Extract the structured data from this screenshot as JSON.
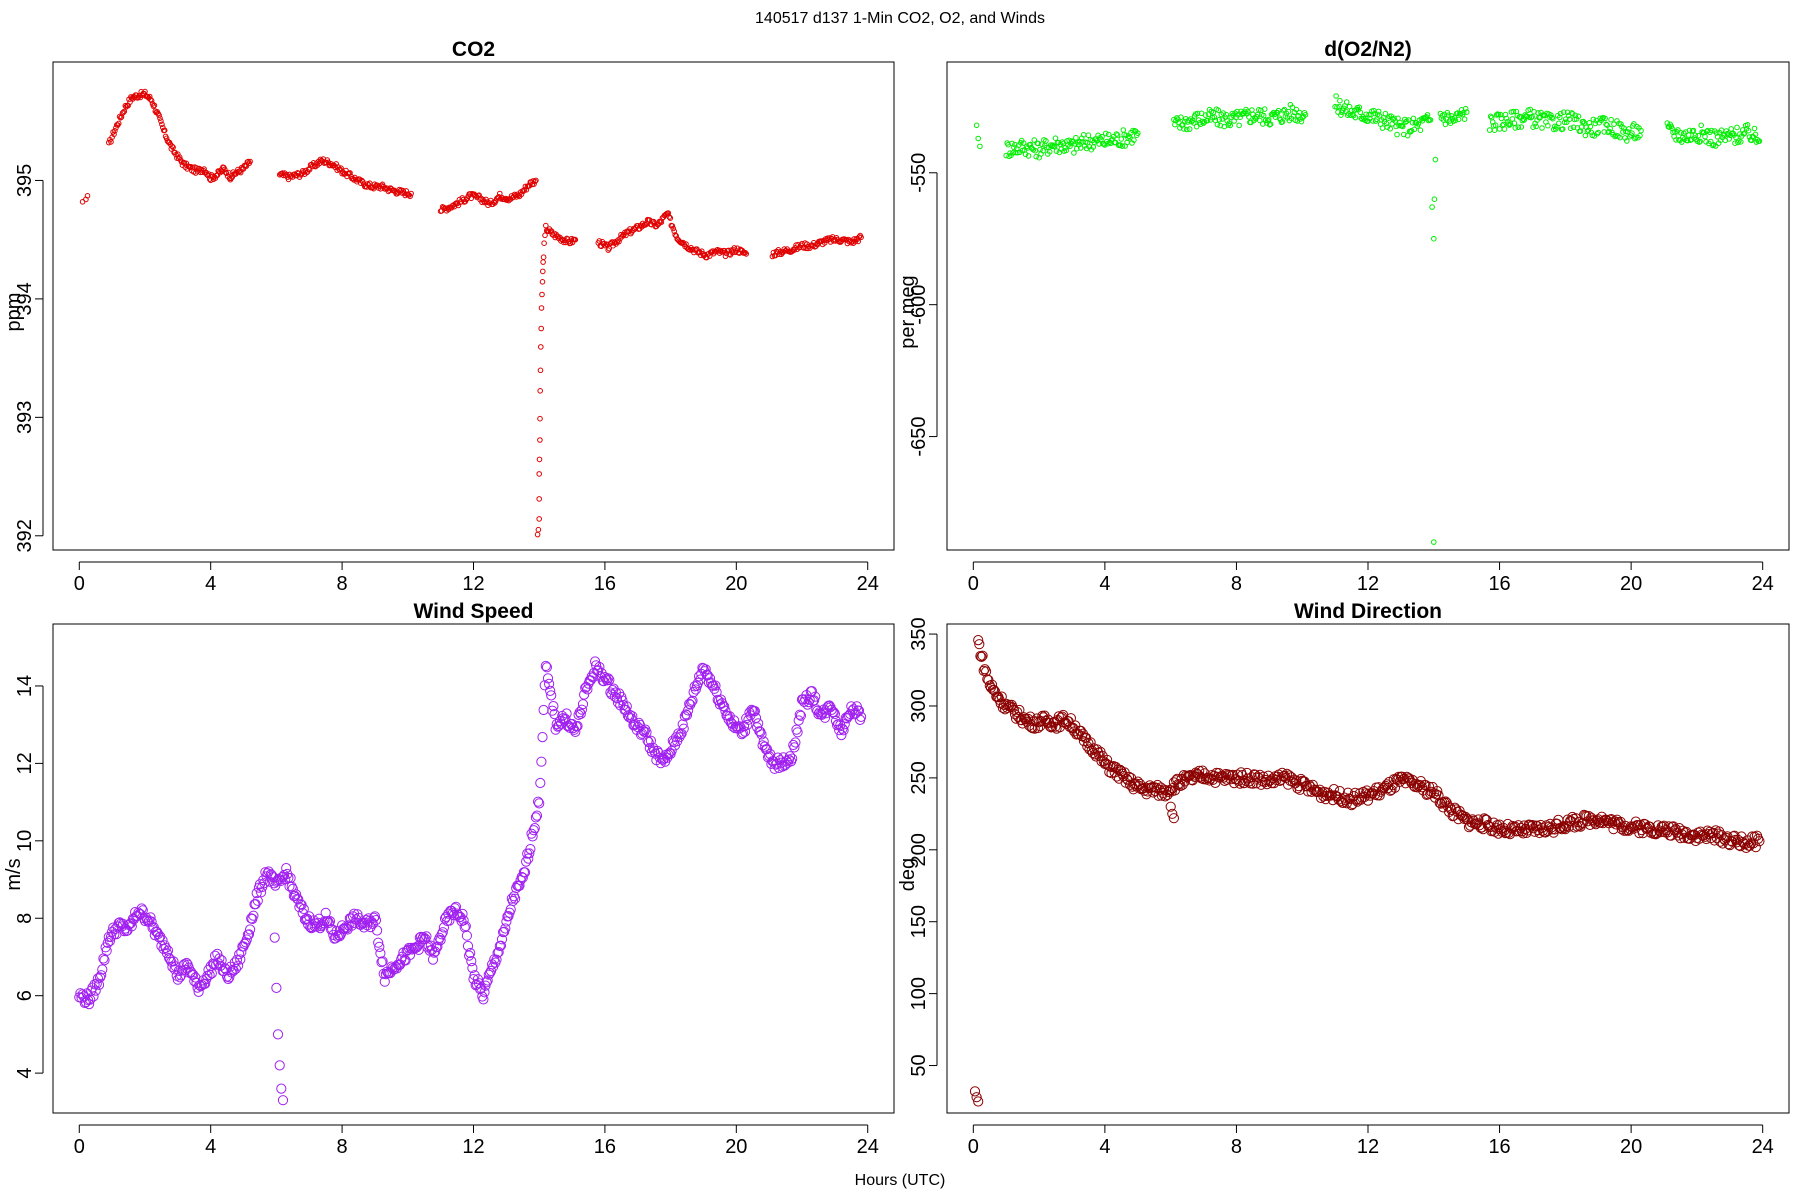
{
  "figure": {
    "suptitle": "140517   d137   1-Min CO2, O2, and Winds",
    "xlabel": "Hours (UTC)"
  },
  "chart_data": [
    {
      "type": "scatter",
      "title": "CO2",
      "ylabel": "ppm",
      "color": "#e00000",
      "marker_radius_style": "small",
      "xlim": [
        -0.8,
        24.8
      ],
      "ylim": [
        391.88,
        396.0
      ],
      "xticks": [
        0,
        4,
        8,
        12,
        16,
        20,
        24
      ],
      "yticks": [
        392,
        393,
        394,
        395
      ],
      "segments": [
        {
          "x": [
            0.1,
            0.2,
            0.25
          ],
          "y": [
            394.82,
            394.84,
            394.87
          ]
        },
        {
          "x": [
            0.9,
            1.0,
            1.2,
            1.4,
            1.6,
            1.8,
            2.0,
            2.2,
            2.4,
            2.6,
            2.8,
            3.0,
            3.2,
            3.4,
            3.6,
            3.8,
            4.0,
            4.2,
            4.4,
            4.6,
            4.8,
            5.0,
            5.2
          ],
          "y": [
            395.3,
            395.37,
            395.5,
            395.62,
            395.7,
            395.72,
            395.73,
            395.68,
            395.55,
            395.4,
            395.28,
            395.2,
            395.13,
            395.1,
            395.08,
            395.1,
            395.02,
            395.05,
            395.1,
            395.03,
            395.07,
            395.1,
            395.16
          ]
        },
        {
          "x": [
            6.1,
            6.4,
            6.8,
            7.1,
            7.4,
            7.7,
            8.0,
            8.3,
            8.6,
            8.9,
            9.2,
            9.5,
            9.8,
            10.1
          ],
          "y": [
            395.05,
            395.03,
            395.06,
            395.12,
            395.17,
            395.14,
            395.08,
            395.03,
            394.98,
            394.95,
            394.95,
            394.92,
            394.9,
            394.89
          ]
        },
        {
          "x": [
            11.0,
            11.3,
            11.6,
            11.9,
            12.2,
            12.5,
            12.8,
            13.1,
            13.4,
            13.7,
            13.9
          ],
          "y": [
            394.75,
            394.78,
            394.82,
            394.87,
            394.85,
            394.8,
            394.87,
            394.85,
            394.88,
            394.97,
            395.0
          ]
        },
        {
          "x": [
            13.95,
            14.0,
            14.0,
            14.02,
            14.03,
            14.05,
            14.07,
            14.1,
            14.12,
            14.15,
            14.2,
            14.4,
            14.6,
            14.9,
            15.1
          ],
          "y": [
            392.0,
            392.15,
            392.5,
            392.8,
            393.2,
            393.6,
            393.9,
            394.15,
            394.3,
            394.45,
            394.6,
            394.55,
            394.52,
            394.48,
            394.5
          ]
        },
        {
          "x": [
            15.8,
            16.1,
            16.4,
            16.7,
            17.0,
            17.3,
            17.6,
            17.9,
            18.2,
            18.5,
            18.8,
            19.1,
            19.4,
            19.7,
            20.0,
            20.3
          ],
          "y": [
            394.48,
            394.43,
            394.5,
            394.56,
            394.6,
            394.65,
            394.62,
            394.72,
            394.52,
            394.45,
            394.4,
            394.37,
            394.4,
            394.38,
            394.42,
            394.38
          ]
        },
        {
          "x": [
            21.1,
            21.4,
            21.7,
            22.0,
            22.3,
            22.6,
            22.9,
            23.2,
            23.5,
            23.8
          ],
          "y": [
            394.38,
            394.4,
            394.42,
            394.45,
            394.45,
            394.48,
            394.5,
            394.5,
            394.48,
            394.52
          ]
        }
      ]
    },
    {
      "type": "scatter",
      "title": "d(O2/N2)",
      "ylabel": "per meg",
      "color": "#00ee00",
      "marker_radius_style": "small",
      "xlim": [
        -0.8,
        24.8
      ],
      "ylim": [
        -693,
        -508
      ],
      "xticks": [
        0,
        4,
        8,
        12,
        16,
        20,
        24
      ],
      "yticks": [
        -650,
        -600,
        -550
      ],
      "segments": [
        {
          "x": [
            0.1,
            0.15,
            0.2
          ],
          "y": [
            -532,
            -537,
            -540
          ]
        },
        {
          "x": [
            1.0,
            1.5,
            2.0,
            2.5,
            3.0,
            3.5,
            4.0,
            4.5,
            5.0
          ],
          "y": [
            -541,
            -540,
            -541,
            -539,
            -540,
            -538,
            -538,
            -537,
            -535
          ]
        },
        {
          "x": [
            6.1,
            6.7,
            7.3,
            7.9,
            8.5,
            9.1,
            9.7,
            10.1
          ],
          "y": [
            -532,
            -530,
            -529,
            -530,
            -528,
            -529,
            -527,
            -528
          ]
        },
        {
          "x": [
            11.0,
            11.5,
            12.0,
            12.5,
            13.0,
            13.5,
            13.9
          ],
          "y": [
            -524,
            -527,
            -528,
            -530,
            -533,
            -532,
            -530
          ]
        },
        {
          "x": [
            13.95,
            14.0,
            14.0,
            14.02,
            14.05
          ],
          "y": [
            -563,
            -575,
            -690,
            -560,
            -545
          ]
        },
        {
          "x": [
            14.2,
            14.6,
            15.0
          ],
          "y": [
            -528,
            -530,
            -527
          ]
        },
        {
          "x": [
            15.7,
            16.3,
            16.9,
            17.5,
            18.1,
            18.7,
            19.3,
            19.9,
            20.3
          ],
          "y": [
            -531,
            -530,
            -529,
            -531,
            -530,
            -533,
            -532,
            -535,
            -534
          ]
        },
        {
          "x": [
            21.1,
            21.6,
            22.1,
            22.6,
            23.1,
            23.6,
            23.9
          ],
          "y": [
            -534,
            -536,
            -535,
            -537,
            -536,
            -535,
            -538
          ]
        }
      ]
    },
    {
      "type": "scatter",
      "title": "Wind Speed",
      "ylabel": "m/s",
      "color": "#a020f0",
      "marker_radius_style": "large",
      "xlim": [
        -0.8,
        24.8
      ],
      "ylim": [
        2.97,
        15.6
      ],
      "xticks": [
        0,
        4,
        8,
        12,
        16,
        20,
        24
      ],
      "yticks": [
        4,
        6,
        8,
        10,
        12,
        14
      ],
      "x": [
        0.0,
        0.3,
        0.6,
        0.9,
        1.2,
        1.5,
        1.8,
        2.1,
        2.4,
        2.7,
        3.0,
        3.3,
        3.6,
        3.9,
        4.2,
        4.5,
        4.8,
        5.1,
        5.4,
        5.7,
        6.0,
        6.3,
        6.6,
        6.9,
        7.2,
        7.5,
        7.8,
        8.1,
        8.4,
        8.7,
        9.0,
        9.3,
        9.6,
        9.9,
        10.2,
        10.5,
        10.8,
        11.1,
        11.4,
        11.7,
        12.0,
        12.3,
        12.6,
        12.9,
        13.2,
        13.5,
        13.8,
        14.0,
        14.2,
        14.5,
        14.8,
        15.1,
        15.4,
        15.7,
        16.0,
        16.3,
        16.6,
        16.9,
        17.2,
        17.5,
        17.8,
        18.1,
        18.4,
        18.7,
        19.0,
        19.3,
        19.6,
        19.9,
        20.2,
        20.5,
        20.8,
        21.1,
        21.4,
        21.7,
        22.0,
        22.3,
        22.6,
        22.9,
        23.2,
        23.5,
        23.8
      ],
      "y": [
        6.0,
        5.9,
        6.4,
        7.5,
        7.8,
        7.7,
        8.2,
        8.0,
        7.5,
        7.2,
        6.5,
        6.8,
        6.2,
        6.5,
        7.0,
        6.5,
        6.8,
        7.5,
        8.5,
        9.2,
        8.8,
        9.2,
        8.5,
        8.0,
        7.8,
        8.0,
        7.5,
        7.8,
        8.0,
        7.8,
        8.0,
        6.5,
        6.8,
        7.0,
        7.2,
        7.5,
        7.0,
        7.8,
        8.2,
        8.0,
        6.5,
        6.0,
        6.8,
        7.5,
        8.5,
        9.0,
        10.2,
        11.0,
        14.5,
        13.0,
        13.2,
        12.8,
        13.8,
        14.5,
        14.2,
        13.8,
        13.5,
        13.0,
        12.8,
        12.3,
        12.0,
        12.5,
        13.0,
        13.8,
        14.5,
        14.0,
        13.5,
        13.0,
        12.8,
        13.5,
        12.5,
        12.0,
        12.0,
        12.2,
        13.5,
        13.8,
        13.2,
        13.5,
        12.8,
        13.5,
        13.2
      ],
      "outliers": {
        "x": [
          5.95,
          6.0,
          6.05,
          6.1,
          6.15,
          6.2
        ],
        "y": [
          7.5,
          6.2,
          5.0,
          4.2,
          3.6,
          3.3
        ]
      }
    },
    {
      "type": "scatter",
      "title": "Wind Direction",
      "ylabel": "deg",
      "color": "#8b0000",
      "marker_radius_style": "large",
      "xlim": [
        -0.8,
        24.8
      ],
      "ylim": [
        17,
        357
      ],
      "xticks": [
        0,
        4,
        8,
        12,
        16,
        20,
        24
      ],
      "yticks": [
        50,
        100,
        150,
        200,
        250,
        300,
        350
      ],
      "x": [
        0.15,
        0.25,
        0.35,
        0.5,
        0.7,
        1.0,
        1.3,
        1.6,
        1.9,
        2.2,
        2.5,
        2.8,
        3.1,
        3.4,
        3.7,
        4.0,
        4.3,
        4.6,
        4.9,
        5.2,
        5.5,
        5.8,
        6.1,
        6.4,
        6.7,
        7.0,
        7.5,
        8.0,
        8.5,
        9.0,
        9.5,
        10.0,
        10.5,
        11.0,
        11.5,
        12.0,
        12.5,
        13.0,
        13.5,
        14.0,
        14.5,
        15.0,
        15.5,
        16.0,
        16.5,
        17.0,
        17.5,
        18.0,
        18.5,
        19.0,
        19.5,
        20.0,
        20.5,
        21.0,
        21.5,
        22.0,
        22.5,
        23.0,
        23.5,
        23.9
      ],
      "y": [
        345,
        335,
        325,
        315,
        308,
        300,
        295,
        290,
        288,
        290,
        288,
        291,
        285,
        275,
        270,
        260,
        255,
        250,
        245,
        242,
        242,
        240,
        245,
        248,
        250,
        252,
        250,
        250,
        250,
        248,
        250,
        245,
        240,
        238,
        235,
        238,
        242,
        248,
        245,
        240,
        228,
        220,
        218,
        215,
        213,
        214,
        215,
        218,
        220,
        222,
        218,
        216,
        215,
        214,
        212,
        210,
        210,
        207,
        205,
        206
      ],
      "outliers": {
        "x": [
          0.05,
          0.1,
          0.15,
          6.0,
          6.05,
          6.1
        ],
        "y": [
          32,
          28,
          25,
          230,
          225,
          222
        ]
      }
    }
  ]
}
